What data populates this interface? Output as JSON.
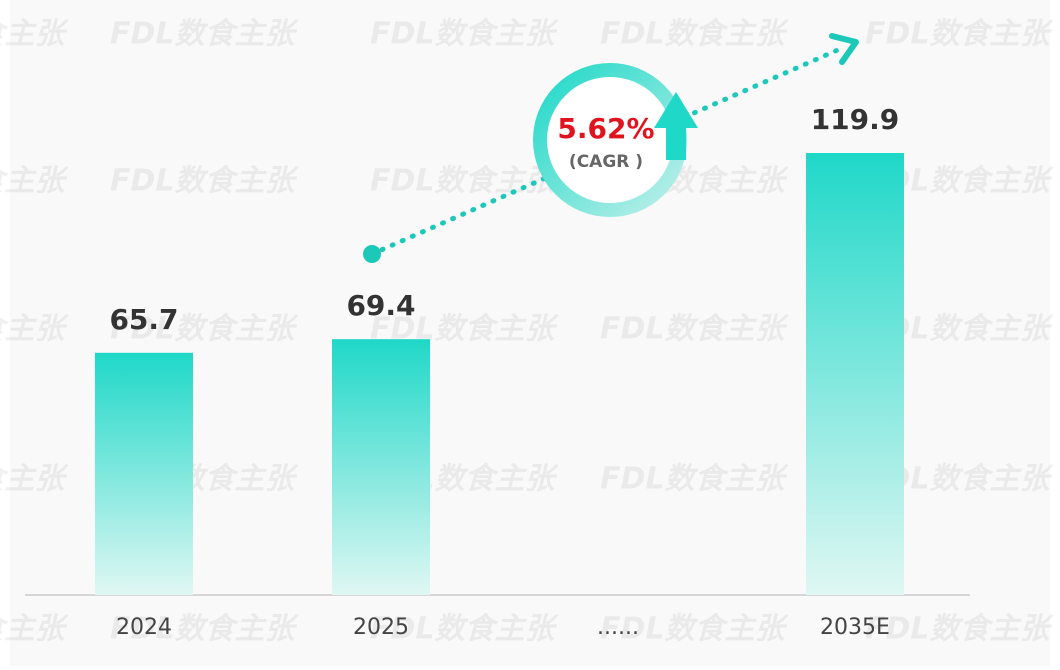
{
  "watermark": "FDL数食主张",
  "chart_data": {
    "type": "bar",
    "categories": [
      "2024",
      "2025",
      "......",
      "2035E"
    ],
    "values": [
      65.7,
      69.4,
      null,
      119.9
    ],
    "color": "#1fd8c8",
    "annotation": {
      "rate": "5.62%",
      "label": "(CAGR )"
    }
  }
}
